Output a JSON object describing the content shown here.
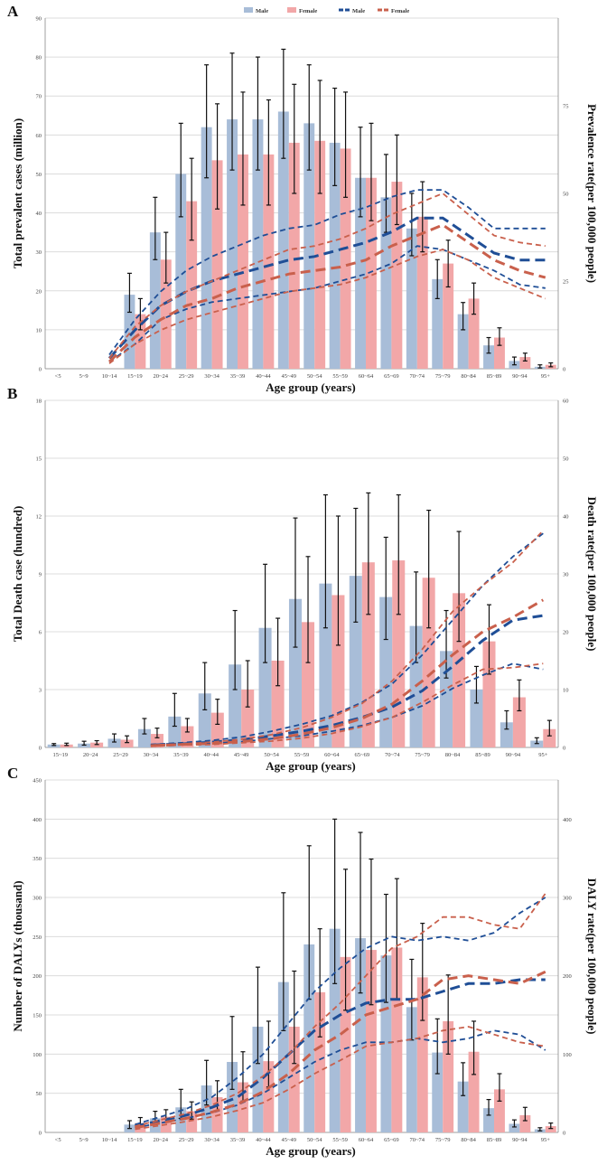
{
  "legend": {
    "bar_male": "Male",
    "bar_female": "Female",
    "line_male": "Male",
    "line_female": "Female",
    "colors": {
      "bar_male": "#a8bdd8",
      "bar_female": "#f2a7a8",
      "line_male": "#1f4e96",
      "line_female": "#c9604c",
      "err": "#111111"
    }
  },
  "chart_data": [
    {
      "panel": "A",
      "type": "bar",
      "xlabel": "Age group (years)",
      "ylabel": "Total prevalent cases (million)",
      "y2label": "Prevalence rate(per 100,000 people)",
      "ylim": [
        0,
        90
      ],
      "yticks": [
        0,
        10,
        20,
        30,
        40,
        50,
        60,
        70,
        80,
        90
      ],
      "y2lim": [
        0,
        100
      ],
      "y2ticks": [
        0,
        25,
        50,
        75
      ],
      "categories": [
        "<5",
        "5~9",
        "10~14",
        "15~19",
        "20~24",
        "25~29",
        "30~34",
        "35~39",
        "40~44",
        "45~49",
        "50~54",
        "55~59",
        "60~64",
        "65~69",
        "70~74",
        "75~79",
        "80~84",
        "85~89",
        "90~94",
        "95+"
      ],
      "series": [
        {
          "name": "Male",
          "kind": "bar",
          "values": [
            0,
            0,
            0,
            19,
            35,
            50,
            62,
            64,
            64,
            66,
            63,
            58,
            49,
            44,
            36,
            23,
            14,
            6,
            2,
            0.5
          ],
          "err_low": [
            0,
            0,
            0,
            14.5,
            28,
            39,
            49,
            51,
            51,
            54,
            51,
            47,
            39,
            35,
            29,
            18,
            10,
            4,
            1,
            0.2
          ],
          "err_high": [
            0,
            0,
            0,
            24.5,
            44,
            63,
            78,
            81,
            80,
            82,
            78,
            72,
            62,
            55,
            45,
            28,
            17,
            8,
            3,
            1
          ]
        },
        {
          "name": "Female",
          "kind": "bar",
          "values": [
            0,
            0,
            0,
            14,
            28,
            43,
            53.5,
            55,
            55,
            58,
            58.5,
            56.5,
            49,
            48,
            39,
            27,
            18,
            8,
            3,
            1
          ],
          "err_low": [
            0,
            0,
            0,
            10,
            22,
            33,
            41,
            42,
            42,
            45,
            45,
            44,
            38,
            37,
            30,
            21,
            14,
            6,
            2,
            0.5
          ],
          "err_high": [
            0,
            0,
            0,
            18,
            35,
            54,
            68,
            71,
            69,
            73,
            74,
            71,
            63,
            60,
            48,
            33,
            22,
            10.5,
            4,
            1.5
          ]
        },
        {
          "name": "Male",
          "kind": "line",
          "values": [
            null,
            null,
            3,
            11,
            18,
            22,
            25,
            27,
            29,
            31,
            32,
            34,
            36,
            39,
            43,
            43,
            38,
            33,
            31,
            31
          ],
          "upper": [
            null,
            null,
            4,
            14,
            22,
            28,
            32,
            35,
            38,
            40,
            41,
            44,
            46,
            49,
            51,
            51,
            46,
            40,
            40,
            40
          ],
          "lower": [
            null,
            null,
            2,
            7,
            14,
            17,
            19,
            20,
            21,
            22,
            23,
            25,
            27,
            30,
            35,
            34,
            31,
            28,
            24,
            23
          ]
        },
        {
          "name": "Female",
          "kind": "line",
          "values": [
            null,
            null,
            2,
            9,
            14,
            18,
            20,
            23,
            25,
            27,
            28,
            29,
            31,
            35,
            38,
            41,
            36,
            31,
            28,
            26
          ],
          "upper": [
            null,
            null,
            3,
            12,
            18,
            22,
            25,
            28,
            31,
            34,
            35,
            37,
            40,
            44,
            47,
            50,
            44,
            38,
            36,
            35
          ],
          "lower": [
            null,
            null,
            1.5,
            7,
            11,
            14,
            16,
            18,
            20,
            22,
            23,
            24,
            26,
            29,
            32,
            34,
            31,
            26,
            23,
            20
          ]
        }
      ]
    },
    {
      "panel": "B",
      "type": "bar",
      "xlabel": "Age group (years)",
      "ylabel": "Total Death case (hundred)",
      "y2label": "Death rate(per 100,000 people)",
      "ylim": [
        0,
        18
      ],
      "yticks": [
        0,
        3,
        6,
        9,
        12,
        15,
        18
      ],
      "y2lim": [
        0,
        60
      ],
      "y2ticks": [
        0,
        10,
        20,
        30,
        40,
        50,
        60
      ],
      "categories": [
        "15~19",
        "20~24",
        "25~29",
        "30~34",
        "35~39",
        "40~44",
        "45~49",
        "50~54",
        "55~59",
        "60~64",
        "65~69",
        "70~74",
        "75~79",
        "80~84",
        "85~89",
        "90~94",
        "95+"
      ],
      "series": [
        {
          "name": "Male",
          "kind": "bar",
          "values": [
            0.15,
            0.2,
            0.45,
            0.95,
            1.6,
            2.8,
            4.3,
            6.2,
            7.7,
            8.5,
            8.9,
            7.8,
            6.3,
            5.0,
            3.0,
            1.3,
            0.35
          ],
          "err_low": [
            0.1,
            0.12,
            0.28,
            0.7,
            1.1,
            1.95,
            3.0,
            4.4,
            5.2,
            6.2,
            6.5,
            5.6,
            4.4,
            3.6,
            2.3,
            0.95,
            0.2
          ],
          "err_high": [
            0.2,
            0.32,
            0.7,
            1.5,
            2.8,
            4.4,
            7.1,
            9.5,
            11.9,
            13.1,
            12.4,
            10.9,
            9.1,
            7.1,
            4.2,
            1.9,
            0.5
          ]
        },
        {
          "name": "Female",
          "kind": "bar",
          "values": [
            0.15,
            0.25,
            0.4,
            0.7,
            1.1,
            1.8,
            3.0,
            4.5,
            6.5,
            7.9,
            9.6,
            9.7,
            8.8,
            8.0,
            5.5,
            2.6,
            0.95
          ],
          "err_low": [
            0.1,
            0.15,
            0.25,
            0.5,
            0.8,
            1.2,
            2.1,
            3.2,
            4.4,
            5.3,
            6.9,
            6.9,
            6.2,
            5.5,
            3.8,
            1.9,
            0.6
          ],
          "err_high": [
            0.22,
            0.35,
            0.6,
            1.0,
            1.5,
            2.5,
            4.5,
            6.7,
            9.9,
            12,
            13.2,
            13.1,
            12.3,
            11.2,
            7.4,
            3.5,
            1.4
          ]
        },
        {
          "name": "Male",
          "kind": "line",
          "values": [
            null,
            null,
            null,
            0.4,
            0.6,
            0.9,
            1.3,
            2.0,
            2.8,
            3.8,
            5.2,
            7.0,
            9.8,
            14.0,
            18.5,
            22.0,
            22.8
          ],
          "upper": [
            null,
            null,
            null,
            0.5,
            0.8,
            1.2,
            1.8,
            2.8,
            4.0,
            5.5,
            7.8,
            11.0,
            16.0,
            22.0,
            28.0,
            33.0,
            37.0
          ],
          "lower": [
            null,
            null,
            null,
            0.3,
            0.5,
            0.7,
            1.0,
            1.5,
            2.0,
            2.8,
            3.8,
            5.2,
            7.2,
            10.2,
            12.5,
            14.5,
            13.5
          ]
        },
        {
          "name": "Female",
          "kind": "line",
          "values": [
            null,
            null,
            null,
            0.3,
            0.5,
            0.7,
            1.0,
            1.5,
            2.3,
            3.4,
            5.0,
            7.5,
            11.5,
            16.0,
            20.0,
            22.5,
            25.5
          ],
          "upper": [
            null,
            null,
            null,
            0.4,
            0.6,
            0.9,
            1.4,
            2.2,
            3.4,
            5.2,
            7.6,
            11.5,
            17.0,
            23.5,
            28.0,
            32.0,
            37.5
          ],
          "lower": [
            null,
            null,
            null,
            0.2,
            0.4,
            0.5,
            0.8,
            1.1,
            1.6,
            2.4,
            3.6,
            5.2,
            7.8,
            10.8,
            13.5,
            13.8,
            14.5
          ]
        }
      ]
    },
    {
      "panel": "C",
      "type": "bar",
      "xlabel": "Age group (years)",
      "ylabel": "Number of DALYs (thousand)",
      "y2label": "DALY rate(per 100,000 people)",
      "ylim": [
        0,
        450
      ],
      "yticks": [
        0,
        50,
        100,
        150,
        200,
        250,
        300,
        350,
        400,
        450
      ],
      "y2lim": [
        0,
        450
      ],
      "y2ticks": [
        0,
        100,
        200,
        300,
        400
      ],
      "categories": [
        "<5",
        "5~9",
        "10~14",
        "15~19",
        "20~24",
        "25~29",
        "30~34",
        "35~39",
        "40~44",
        "45~49",
        "50~54",
        "55~59",
        "60~64",
        "65~69",
        "70~74",
        "75~79",
        "80~84",
        "85~89",
        "90~94",
        "95+"
      ],
      "series": [
        {
          "name": "Male",
          "kind": "bar",
          "values": [
            0,
            0,
            0,
            10,
            18,
            32,
            60,
            90,
            135,
            192,
            240,
            260,
            248,
            226,
            160,
            102,
            65,
            31,
            11,
            4
          ],
          "err_low": [
            0,
            0,
            0,
            5,
            10,
            18,
            35,
            55,
            88,
            130,
            170,
            190,
            178,
            166,
            118,
            75,
            47,
            22,
            7,
            2
          ],
          "err_high": [
            0,
            0,
            0,
            15,
            27,
            55,
            92,
            148,
            211,
            306,
            366,
            400,
            383,
            304,
            221,
            145,
            89,
            42,
            16,
            6
          ]
        },
        {
          "name": "Female",
          "kind": "bar",
          "values": [
            0,
            0,
            0,
            12,
            20,
            27,
            45,
            64,
            91,
            135,
            179,
            224,
            233,
            236,
            198,
            142,
            103,
            55,
            22,
            8
          ],
          "err_low": [
            0,
            0,
            0,
            7,
            13,
            17,
            28,
            40,
            58,
            88,
            122,
            156,
            163,
            170,
            143,
            100,
            74,
            40,
            15,
            5
          ],
          "err_high": [
            0,
            0,
            0,
            19,
            29,
            39,
            66,
            103,
            142,
            206,
            260,
            336,
            349,
            324,
            267,
            201,
            142,
            75,
            32,
            12
          ]
        },
        {
          "name": "Male",
          "kind": "line",
          "values": [
            null,
            null,
            null,
            8,
            15,
            22,
            32,
            45,
            70,
            100,
            130,
            150,
            165,
            170,
            170,
            180,
            190,
            190,
            195,
            195
          ],
          "upper": [
            null,
            null,
            null,
            10,
            20,
            30,
            45,
            70,
            100,
            140,
            180,
            210,
            235,
            250,
            245,
            250,
            245,
            255,
            280,
            300
          ],
          "lower": [
            null,
            null,
            null,
            6,
            12,
            18,
            25,
            35,
            50,
            70,
            90,
            105,
            115,
            115,
            120,
            115,
            120,
            130,
            125,
            105
          ]
        },
        {
          "name": "Female",
          "kind": "line",
          "values": [
            null,
            null,
            null,
            6,
            12,
            18,
            26,
            36,
            52,
            75,
            105,
            125,
            150,
            160,
            170,
            195,
            200,
            195,
            190,
            205
          ],
          "upper": [
            null,
            null,
            null,
            8,
            16,
            24,
            35,
            50,
            72,
            100,
            135,
            165,
            200,
            235,
            250,
            275,
            275,
            265,
            260,
            305
          ],
          "lower": [
            null,
            null,
            null,
            4,
            9,
            14,
            20,
            28,
            38,
            55,
            75,
            92,
            110,
            115,
            120,
            130,
            135,
            125,
            115,
            110
          ]
        }
      ]
    }
  ]
}
